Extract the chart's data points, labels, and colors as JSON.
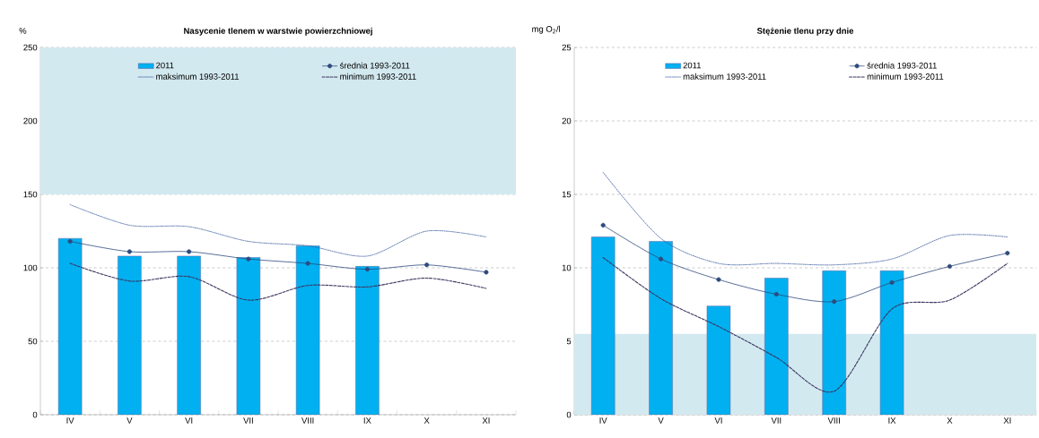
{
  "chart_data": [
    {
      "type": "bar",
      "title": "Nasycenie tlenem w warstwie powierzchniowej",
      "ylabel": "%",
      "categories": [
        "IV",
        "V",
        "VI",
        "VII",
        "VIII",
        "IX",
        "X",
        "XI"
      ],
      "ylim": [
        0,
        250
      ],
      "yticks": [
        0,
        50,
        100,
        150,
        200,
        250
      ],
      "grid": "y",
      "legend": "top",
      "bands": [
        {
          "axis": "y",
          "from": 150,
          "to": 250,
          "color": "#d3e9f0"
        }
      ],
      "series": [
        {
          "name": "2011",
          "color": "#00b0f0",
          "values": [
            120,
            108,
            108,
            107,
            115,
            101,
            null,
            null
          ]
        },
        {
          "name": "średnia 1993-2011",
          "type": "line",
          "color": "#2e4a7d",
          "marker": "circle",
          "line_style": "solid",
          "values": [
            118,
            111,
            111,
            106,
            103,
            99,
            102,
            97
          ]
        },
        {
          "name": "maksimum 1993-2011",
          "type": "line",
          "color": "#3f5f9f",
          "line_style": "dotted",
          "values": [
            143,
            129,
            128,
            118,
            115,
            108,
            125,
            121
          ]
        },
        {
          "name": "minimum 1993-2011",
          "type": "line",
          "color": "#3b3560",
          "line_style": "dashed",
          "values": [
            103,
            91,
            94,
            78,
            88,
            87,
            93,
            86
          ]
        }
      ]
    },
    {
      "type": "bar",
      "title": "Stężenie tlenu przy dnie",
      "ylabel": "mg O$_{2}$/l",
      "categories": [
        "IV",
        "V",
        "VI",
        "VII",
        "VIII",
        "IX",
        "X",
        "XI"
      ],
      "ylim": [
        0,
        25
      ],
      "yticks": [
        0,
        5,
        10,
        15,
        20,
        25
      ],
      "grid": "y",
      "legend": "top",
      "bands": [
        {
          "axis": "y",
          "from": 0,
          "to": 5.5,
          "color": "#d3e9f0"
        }
      ],
      "series": [
        {
          "name": "2011",
          "color": "#00b0f0",
          "values": [
            12.1,
            11.8,
            7.4,
            9.3,
            9.8,
            9.8,
            null,
            null
          ]
        },
        {
          "name": "średnia 1993-2011",
          "type": "line",
          "color": "#2e4a7d",
          "marker": "circle",
          "line_style": "solid",
          "values": [
            12.9,
            10.6,
            9.2,
            8.2,
            7.7,
            9.0,
            10.1,
            11.0
          ]
        },
        {
          "name": "maksimum 1993-2011",
          "type": "line",
          "color": "#3f5f9f",
          "line_style": "dotted",
          "values": [
            16.5,
            12.0,
            10.3,
            10.3,
            10.2,
            10.6,
            12.2,
            12.1
          ]
        },
        {
          "name": "minimum 1993-2011",
          "type": "line",
          "color": "#3b3560",
          "line_style": "dashed",
          "values": [
            10.7,
            7.9,
            6.0,
            3.9,
            1.6,
            7.2,
            7.8,
            10.3
          ]
        }
      ]
    }
  ]
}
